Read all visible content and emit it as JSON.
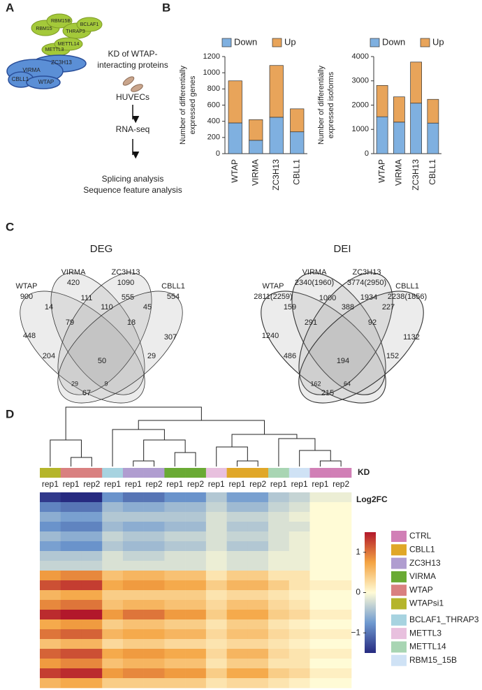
{
  "panel_labels": [
    "A",
    "B",
    "C",
    "D"
  ],
  "panel_a": {
    "green_proteins": [
      "RBM15",
      "RBM15B",
      "THRAP3",
      "BCLAF1",
      "METTL3",
      "METTL14"
    ],
    "blue_proteins": [
      "ZC3H13",
      "VIRMA",
      "CBLL1",
      "WTAP"
    ],
    "kd_text": [
      "KD of WTAP-",
      "interacting proteins"
    ],
    "cells": "HUVECs",
    "sequencing": "RNA-seq",
    "analyses": [
      "Splicing analysis",
      "Sequence feature analysis"
    ]
  },
  "chart_data": [
    {
      "type": "bar",
      "stacked": true,
      "ylabel": [
        "Number of differentially",
        "expressed genes"
      ],
      "categories": [
        "WTAP",
        "VIRMA",
        "ZC3H13",
        "CBLL1"
      ],
      "series": [
        {
          "name": "Down",
          "color": "#7fb0e0",
          "values": [
            380,
            165,
            450,
            270
          ]
        },
        {
          "name": "Up",
          "color": "#e8a45a",
          "values": [
            520,
            255,
            640,
            284
          ]
        }
      ],
      "ylim": [
        0,
        1200
      ],
      "yticks": [
        0,
        200,
        400,
        600,
        800,
        1000,
        1200
      ],
      "legend": "top"
    },
    {
      "type": "bar",
      "stacked": true,
      "ylabel": [
        "Number of differentially",
        "expressed isoforms"
      ],
      "categories": [
        "WTAP",
        "VIRMA",
        "ZC3H13",
        "CBLL1"
      ],
      "series": [
        {
          "name": "Down",
          "color": "#7fb0e0",
          "values": [
            1520,
            1300,
            2080,
            1260
          ]
        },
        {
          "name": "Up",
          "color": "#e8a45a",
          "values": [
            1291,
            1040,
            1694,
            978
          ]
        }
      ],
      "ylim": [
        0,
        4000
      ],
      "yticks": [
        0,
        1000,
        2000,
        3000,
        4000
      ],
      "legend": "top"
    }
  ],
  "venn": [
    {
      "title": "DEG",
      "sets": [
        {
          "name": "WTAP",
          "size": 900
        },
        {
          "name": "VIRMA",
          "size": 420
        },
        {
          "name": "ZC3H13",
          "size": 1090
        },
        {
          "name": "CBLL1",
          "size": 554
        }
      ],
      "regions": [
        448,
        14,
        111,
        110,
        555,
        45,
        307,
        79,
        18,
        50,
        204,
        29,
        29,
        9,
        67
      ]
    },
    {
      "title": "DEI",
      "sets": [
        {
          "name": "WTAP",
          "size": "2811(2259)"
        },
        {
          "name": "VIRMA",
          "size": "2340(1960)"
        },
        {
          "name": "ZC3H13",
          "size": "3774(2950)"
        },
        {
          "name": "CBLL1",
          "size": "2238(1856)"
        }
      ],
      "regions": [
        1240,
        159,
        1000,
        388,
        1934,
        227,
        1132,
        291,
        92,
        194,
        486,
        162,
        152,
        64,
        215
      ]
    }
  ],
  "heatmap": {
    "kd_label": "KD",
    "legend_title": "Log2FC",
    "column_labels": [
      "rep1",
      "rep1",
      "rep2",
      "rep1",
      "rep1",
      "rep2",
      "rep1",
      "rep2",
      "rep1",
      "rep1",
      "rep2",
      "rep1",
      "rep1",
      "rep1",
      "rep2"
    ],
    "column_colors": [
      "#b5b52a",
      "#d98080",
      "#d98080",
      "#a7d3e0",
      "#b09dd0",
      "#b09dd0",
      "#6aaa34",
      "#6aaa34",
      "#e8c0de",
      "#e0a728",
      "#e0a728",
      "#a8d5b3",
      "#cfe2f5",
      "#d17fb6",
      "#d17fb6"
    ],
    "color_scale": {
      "lim": [
        -1.5,
        1.5
      ],
      "ticks": [
        1,
        0,
        {
          "value": -1,
          "label": "−1"
        }
      ],
      "colors": [
        "#262a80",
        "#6f9ad0",
        "#fffbd6",
        "#f4a442",
        "#b2182b"
      ]
    },
    "legend": [
      {
        "name": "CTRL",
        "color": "#d17fb6"
      },
      {
        "name": "CBLL1",
        "color": "#e0a728"
      },
      {
        "name": "ZC3H13",
        "color": "#b09dd0"
      },
      {
        "name": "VIRMA",
        "color": "#6aaa34"
      },
      {
        "name": "WTAP",
        "color": "#d98080"
      },
      {
        "name": "WTAPsi1",
        "color": "#b5b52a"
      },
      {
        "name": "BCLAF1_THRAP3",
        "color": "#a7d3e0"
      },
      {
        "name": "METTL3",
        "color": "#e8c0de"
      },
      {
        "name": "METTL14",
        "color": "#a8d5b3"
      },
      {
        "name": "RBM15_15B",
        "color": "#cfe2f5"
      }
    ],
    "values": [
      [
        -1.4,
        -1.5,
        -1.5,
        -0.8,
        -1.0,
        -1.0,
        -0.8,
        -0.8,
        -0.4,
        -0.7,
        -0.7,
        -0.4,
        -0.3,
        -0.1,
        -0.1
      ],
      [
        -0.9,
        -1.0,
        -1.0,
        -0.5,
        -0.6,
        -0.6,
        -0.5,
        -0.5,
        -0.3,
        -0.5,
        -0.5,
        -0.3,
        -0.2,
        0,
        0
      ],
      [
        -0.6,
        -0.7,
        -0.7,
        -0.4,
        -0.4,
        -0.4,
        -0.4,
        -0.4,
        -0.2,
        -0.3,
        -0.3,
        -0.2,
        -0.1,
        0,
        0
      ],
      [
        -0.8,
        -0.9,
        -0.9,
        -0.5,
        -0.6,
        -0.6,
        -0.5,
        -0.5,
        -0.2,
        -0.4,
        -0.4,
        -0.2,
        -0.2,
        0,
        0
      ],
      [
        -0.5,
        -0.6,
        -0.6,
        -0.3,
        -0.4,
        -0.4,
        -0.3,
        -0.3,
        -0.2,
        -0.3,
        -0.3,
        -0.2,
        -0.1,
        0,
        0
      ],
      [
        -0.7,
        -0.8,
        -0.8,
        -0.4,
        -0.5,
        -0.5,
        -0.4,
        -0.4,
        -0.2,
        -0.4,
        -0.4,
        -0.2,
        -0.1,
        0,
        0
      ],
      [
        -0.4,
        -0.4,
        -0.4,
        -0.2,
        -0.3,
        -0.3,
        -0.2,
        -0.2,
        -0.1,
        -0.2,
        -0.2,
        -0.1,
        -0.1,
        0,
        0
      ],
      [
        -0.3,
        -0.3,
        -0.3,
        -0.2,
        -0.2,
        -0.2,
        -0.2,
        -0.2,
        -0.1,
        -0.2,
        -0.2,
        -0.1,
        -0.1,
        0,
        0
      ],
      [
        0.8,
        0.9,
        0.9,
        0.5,
        0.6,
        0.6,
        0.5,
        0.5,
        0.2,
        0.4,
        0.4,
        0.2,
        0.2,
        0,
        0
      ],
      [
        1.2,
        1.3,
        1.3,
        0.7,
        0.8,
        0.8,
        0.7,
        0.7,
        0.4,
        0.6,
        0.6,
        0.4,
        0.2,
        0.1,
        0.1
      ],
      [
        0.6,
        0.7,
        0.7,
        0.4,
        0.4,
        0.4,
        0.4,
        0.4,
        0.2,
        0.3,
        0.3,
        0.2,
        0.1,
        0,
        0
      ],
      [
        0.9,
        1.0,
        1.0,
        0.5,
        0.6,
        0.6,
        0.5,
        0.5,
        0.3,
        0.5,
        0.5,
        0.3,
        0.2,
        0,
        0
      ],
      [
        1.4,
        1.5,
        1.5,
        0.8,
        1.0,
        1.0,
        0.8,
        0.8,
        0.4,
        0.7,
        0.7,
        0.4,
        0.3,
        0.1,
        0.1
      ],
      [
        0.7,
        0.8,
        0.8,
        0.4,
        0.5,
        0.5,
        0.4,
        0.4,
        0.2,
        0.4,
        0.4,
        0.2,
        0.1,
        0,
        0
      ],
      [
        1.0,
        1.1,
        1.1,
        0.6,
        0.7,
        0.7,
        0.6,
        0.6,
        0.3,
        0.5,
        0.5,
        0.3,
        0.2,
        0.1,
        0.1
      ],
      [
        0.5,
        0.6,
        0.6,
        0.3,
        0.4,
        0.4,
        0.3,
        0.3,
        0.2,
        0.3,
        0.3,
        0.2,
        0.1,
        0,
        0
      ],
      [
        1.1,
        1.2,
        1.2,
        0.7,
        0.8,
        0.8,
        0.7,
        0.7,
        0.3,
        0.6,
        0.6,
        0.3,
        0.2,
        0.1,
        0.1
      ],
      [
        0.8,
        0.9,
        0.9,
        0.5,
        0.6,
        0.6,
        0.5,
        0.5,
        0.2,
        0.4,
        0.4,
        0.2,
        0.2,
        0,
        0
      ],
      [
        1.3,
        1.4,
        1.4,
        0.8,
        0.9,
        0.9,
        0.8,
        0.8,
        0.4,
        0.7,
        0.7,
        0.4,
        0.3,
        0.1,
        0.1
      ],
      [
        0.6,
        0.7,
        0.7,
        0.4,
        0.4,
        0.4,
        0.4,
        0.4,
        0.2,
        0.3,
        0.3,
        0.2,
        0.1,
        0,
        0
      ]
    ]
  }
}
